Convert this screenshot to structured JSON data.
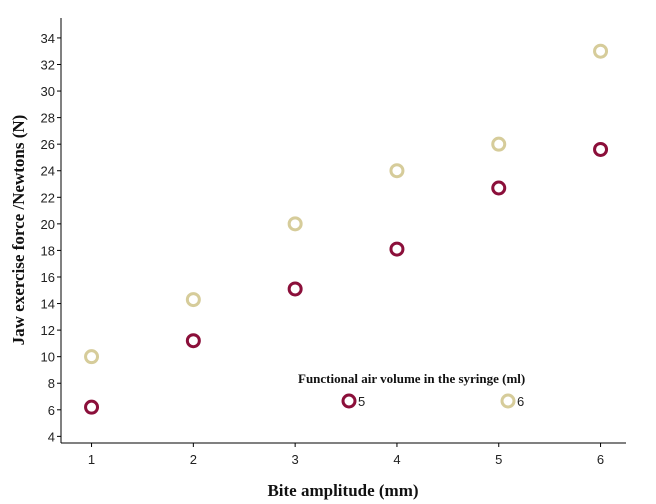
{
  "chart_data": {
    "type": "scatter",
    "xlabel": "Bite amplitude (mm)",
    "ylabel": "Jaw exercise force /Newtons (N)",
    "x": [
      1,
      2,
      3,
      4,
      5,
      6
    ],
    "xticks": [
      "1",
      "2",
      "3",
      "4",
      "5",
      "6"
    ],
    "yticks": [
      "4",
      "6",
      "8",
      "10",
      "12",
      "14",
      "16",
      "18",
      "20",
      "22",
      "24",
      "26",
      "28",
      "30",
      "32",
      "34"
    ],
    "xlim": [
      0.7,
      6.25
    ],
    "ylim": [
      3.5,
      35.5
    ],
    "grid": false,
    "legend": {
      "title": "Functional air volume in the syringe  (ml)",
      "placement": "inside-bottom-right"
    },
    "series": [
      {
        "name": "5",
        "color": "#8b0f3a",
        "values": [
          6.2,
          11.2,
          15.1,
          18.1,
          22.7,
          25.6
        ]
      },
      {
        "name": "6",
        "color": "#d6cc9a",
        "values": [
          10.0,
          14.3,
          20.0,
          24.0,
          26.0,
          33.0
        ]
      }
    ]
  }
}
